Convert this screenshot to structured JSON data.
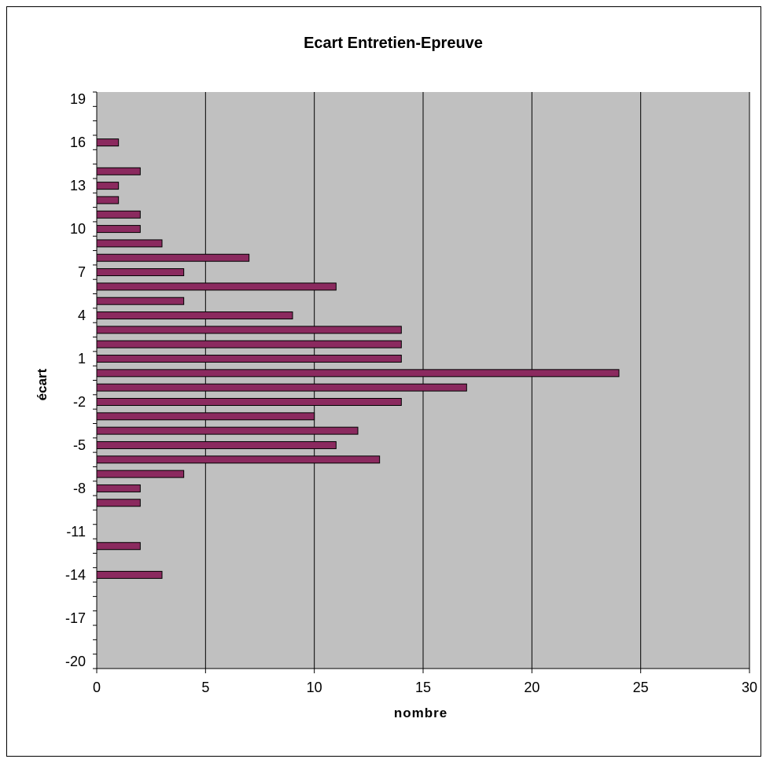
{
  "chart_data": {
    "type": "bar",
    "orientation": "horizontal",
    "title": "Ecart Entretien-Epreuve",
    "xlabel": "nombre",
    "ylabel": "écart",
    "xlim": [
      0,
      30
    ],
    "x_ticks": [
      0,
      5,
      10,
      15,
      20,
      25,
      30
    ],
    "ylim": [
      -20,
      20
    ],
    "y_ticks": [
      19,
      16,
      13,
      10,
      7,
      4,
      1,
      -2,
      -5,
      -8,
      -11,
      -14,
      -17,
      -20
    ],
    "grid": {
      "vertical_major": true,
      "horizontal": false
    },
    "legend": "none",
    "categories": [
      20,
      19,
      18,
      17,
      16,
      15,
      14,
      13,
      12,
      11,
      10,
      9,
      8,
      7,
      6,
      5,
      4,
      3,
      2,
      1,
      0,
      -1,
      -2,
      -3,
      -4,
      -5,
      -6,
      -7,
      -8,
      -9,
      -10,
      -11,
      -12,
      -13,
      -14,
      -15,
      -16,
      -17,
      -18,
      -19,
      -20
    ],
    "values": [
      0,
      0,
      0,
      0,
      1,
      0,
      2,
      1,
      1,
      2,
      2,
      3,
      7,
      4,
      11,
      4,
      9,
      14,
      14,
      14,
      24,
      17,
      14,
      10,
      12,
      11,
      13,
      4,
      2,
      2,
      0,
      0,
      2,
      0,
      3,
      0,
      0,
      0,
      0,
      0,
      0
    ],
    "colors": {
      "bar_fill": "#8B2A5F",
      "bar_stroke": "#000000",
      "plot_area": "#C0C0C0",
      "gridline": "#000000",
      "background": "#FFFFFF"
    }
  }
}
